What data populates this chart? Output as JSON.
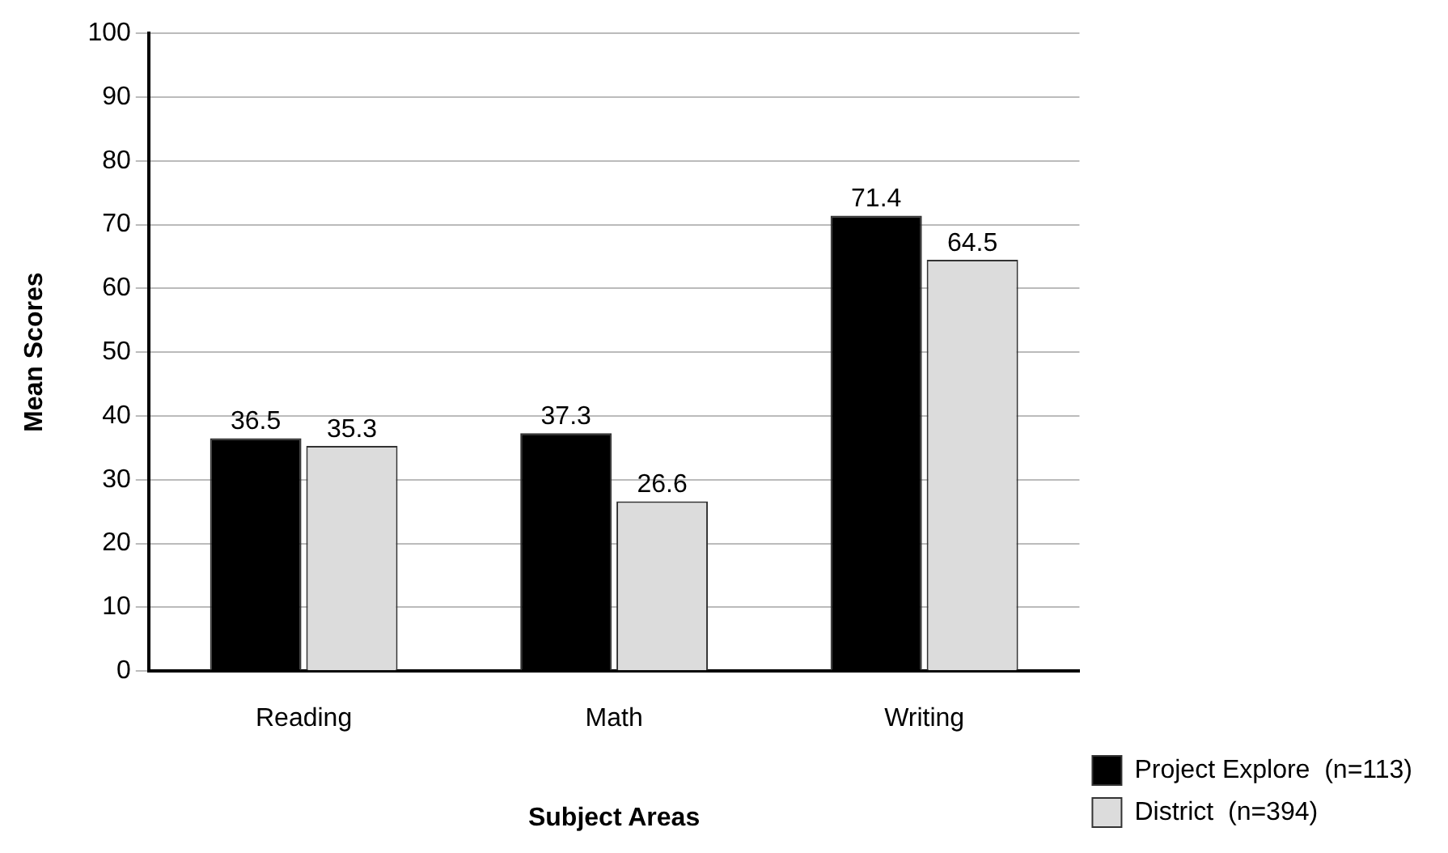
{
  "chart_data": {
    "type": "bar",
    "xlabel": "Subject Areas",
    "ylabel": "Mean Scores",
    "categories": [
      "Reading",
      "Math",
      "Writing"
    ],
    "series": [
      {
        "name": "Project Explore  (n=113)",
        "color": "#000000",
        "values": [
          36.5,
          37.3,
          71.4
        ]
      },
      {
        "name": "District  (n=394)",
        "color": "#dcdcdc",
        "values": [
          35.3,
          26.6,
          64.5
        ]
      }
    ],
    "ylim": [
      0,
      100
    ],
    "yticks": [
      0,
      10,
      20,
      30,
      40,
      50,
      60,
      70,
      80,
      90,
      100
    ],
    "grid": "y",
    "legend": "bottom right",
    "data_labels": true
  }
}
